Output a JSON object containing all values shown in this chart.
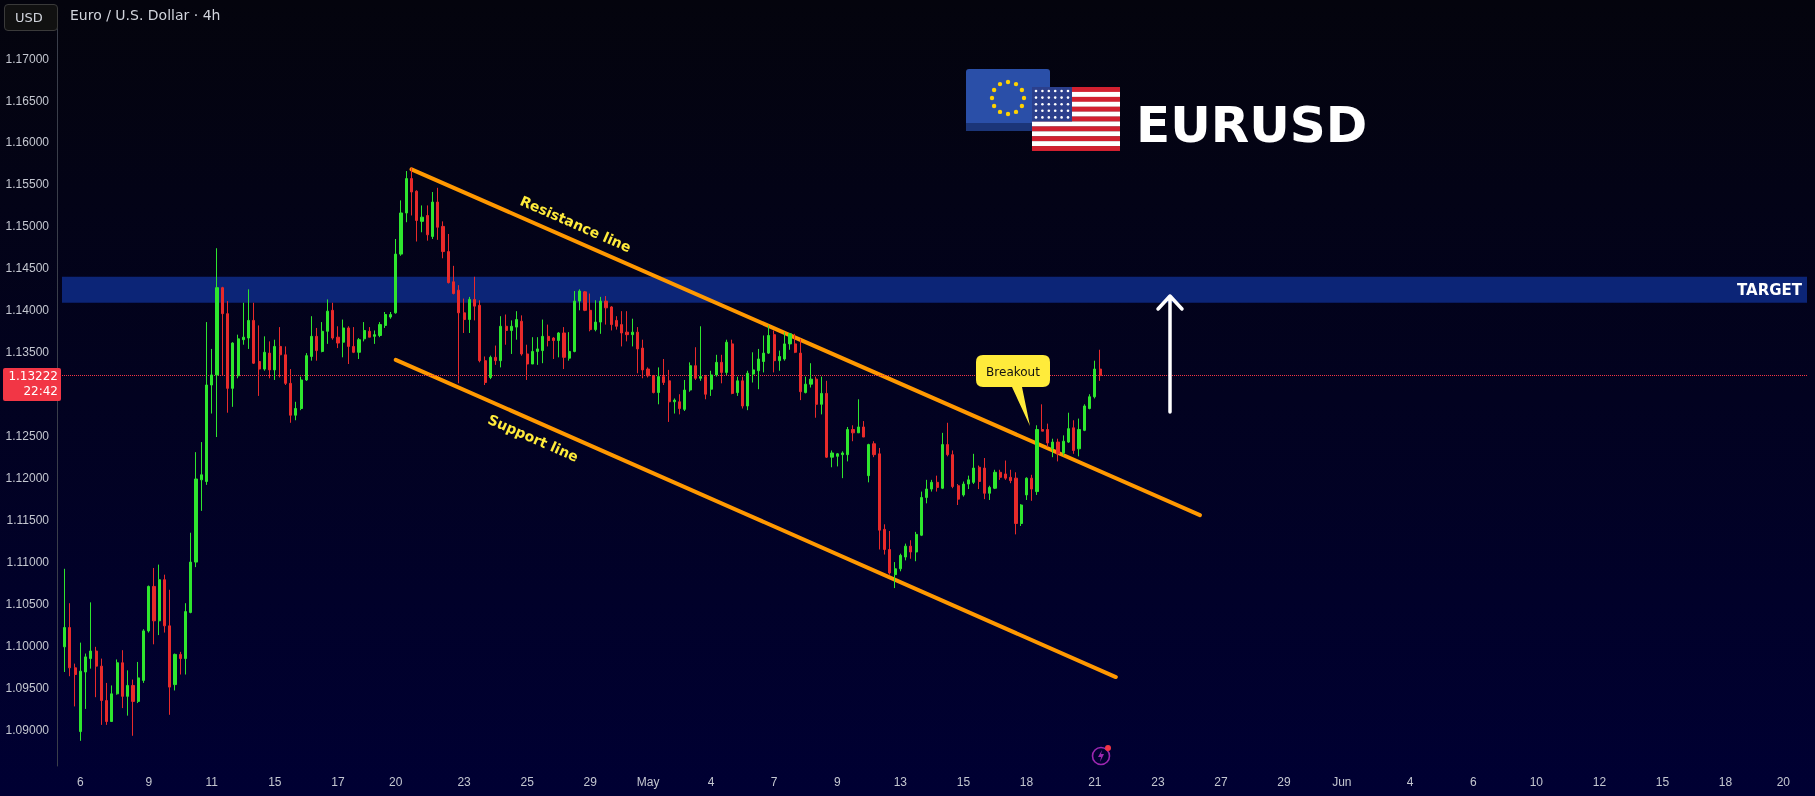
{
  "chart_data": {
    "type": "candlestick",
    "title": "Euro / U.S. Dollar · 4h",
    "subtitle": "EURUSD",
    "ylabel": "USD",
    "categories": [
      null,
      null,
      null,
      "6",
      null,
      null,
      null,
      null,
      null,
      null,
      null,
      null,
      null,
      null,
      null,
      null,
      "9",
      null,
      null,
      null,
      null,
      null,
      null,
      null,
      null,
      null,
      null,
      null,
      "11",
      null,
      null,
      null,
      null,
      null,
      null,
      null,
      null,
      null,
      null,
      null,
      "15",
      null,
      null,
      null,
      null,
      null,
      null,
      null,
      null,
      null,
      null,
      null,
      "17",
      null,
      null,
      null,
      null,
      null,
      null,
      null,
      null,
      null,
      null,
      "20",
      null,
      null,
      null,
      null,
      null,
      null,
      null,
      null,
      null,
      null,
      null,
      null,
      "23",
      null,
      null,
      null,
      null,
      null,
      null,
      null,
      null,
      null,
      null,
      null,
      "25",
      null,
      null,
      null,
      null,
      null,
      null,
      null,
      null,
      null,
      null,
      null,
      "29",
      null,
      null,
      null,
      null,
      null,
      null,
      null,
      null,
      null,
      null,
      "May",
      null,
      null,
      null,
      null,
      null,
      null,
      null,
      null,
      null,
      null,
      null,
      "4",
      null,
      null,
      null,
      null,
      null,
      null,
      null,
      null,
      null,
      null,
      null,
      "7",
      null,
      null,
      null,
      null,
      null,
      null,
      null,
      null,
      null,
      null,
      null,
      "9",
      null,
      null,
      null,
      null,
      null,
      null,
      null,
      null,
      null,
      null,
      null,
      "13",
      null,
      null,
      null,
      null,
      null,
      null,
      null,
      null,
      null,
      null,
      null,
      "15",
      null,
      null,
      null,
      null,
      null,
      null,
      null,
      null,
      null,
      null,
      null,
      "18",
      null,
      null,
      null,
      null,
      null,
      null,
      null,
      null,
      null,
      null,
      null,
      null,
      "21",
      null,
      null,
      null,
      null,
      null,
      null,
      null,
      null,
      null,
      null,
      null,
      "23",
      null,
      null,
      null,
      null,
      null,
      null,
      null,
      null,
      null,
      null,
      null,
      "27",
      null,
      null,
      null,
      null,
      null,
      null,
      null,
      null,
      null,
      null,
      null,
      "29",
      null,
      null,
      null,
      null,
      null,
      null,
      null,
      null,
      null,
      null,
      "Jun",
      null,
      null,
      null,
      null,
      null,
      null,
      null,
      null,
      null,
      null,
      null,
      null,
      "4",
      null,
      null,
      null,
      null,
      null,
      null,
      null,
      null,
      null,
      null,
      null,
      "6",
      null,
      null,
      null,
      null,
      null,
      null,
      null,
      null,
      null,
      null,
      null,
      "10",
      null,
      null,
      null,
      null,
      null,
      null,
      null,
      null,
      null,
      null,
      null,
      "12",
      null,
      null,
      null,
      null,
      null,
      null,
      null,
      null,
      null,
      null,
      null,
      "15",
      null,
      null,
      null,
      null,
      null,
      null,
      null,
      null,
      null,
      null,
      null,
      "18",
      null,
      null,
      null,
      null,
      null,
      null,
      null,
      null,
      null,
      null,
      "20",
      null,
      null,
      null,
      null
    ],
    "ohlc": [
      [
        1.0999,
        1.1092,
        1.0969,
        1.1022
      ],
      [
        1.1022,
        1.1051,
        1.0964,
        1.0974
      ],
      [
        1.0974,
        1.0979,
        1.0928,
        1.0966
      ],
      [
        1.0898,
        1.1004,
        1.0887,
        1.097
      ],
      [
        1.0969,
        1.0991,
        1.0925,
        1.0987
      ],
      [
        1.0985,
        1.1052,
        1.0973,
        1.0994
      ],
      [
        1.0994,
        1.0999,
        1.0939,
        1.0976
      ],
      [
        1.0976,
        1.0985,
        1.0906,
        1.0935
      ],
      [
        1.0935,
        1.0956,
        1.0906,
        1.091
      ],
      [
        1.091,
        1.0953,
        1.091,
        1.0943
      ],
      [
        1.0943,
        1.0984,
        1.0942,
        1.098
      ],
      [
        1.098,
        1.0995,
        1.0926,
        1.094
      ],
      [
        1.094,
        1.0971,
        1.0917,
        1.0953
      ],
      [
        1.0953,
        1.096,
        1.0893,
        1.0934
      ],
      [
        1.0934,
        1.0981,
        1.0932,
        1.0962
      ],
      [
        1.0959,
        1.102,
        1.0956,
        1.1018
      ],
      [
        1.1018,
        1.1072,
        1.1016,
        1.1071
      ],
      [
        1.1071,
        1.1093,
        1.1002,
        1.103
      ],
      [
        1.103,
        1.1097,
        1.1013,
        1.1079
      ],
      [
        1.1079,
        1.1085,
        1.1016,
        1.1024
      ],
      [
        1.1024,
        1.1067,
        1.0918,
        1.0951
      ],
      [
        1.0954,
        1.0991,
        1.0947,
        1.099
      ],
      [
        1.099,
        1.0993,
        1.0966,
        1.0985
      ],
      [
        1.0985,
        1.1051,
        1.0966,
        1.1041
      ],
      [
        1.104,
        1.1135,
        1.1039,
        1.11
      ],
      [
        1.11,
        1.1231,
        1.1094,
        1.1199
      ],
      [
        1.1198,
        1.1243,
        1.1161,
        1.1204
      ],
      [
        1.1196,
        1.1386,
        1.1192,
        1.1311
      ],
      [
        1.1311,
        1.1354,
        1.1277,
        1.1323
      ],
      [
        1.1323,
        1.1474,
        1.1249,
        1.1427
      ],
      [
        1.1427,
        1.1428,
        1.1322,
        1.1396
      ],
      [
        1.1396,
        1.1411,
        1.1278,
        1.1307
      ],
      [
        1.1307,
        1.1362,
        1.1285,
        1.1361
      ],
      [
        1.1322,
        1.1371,
        1.1319,
        1.1366
      ],
      [
        1.1365,
        1.1409,
        1.1359,
        1.1368
      ],
      [
        1.1367,
        1.1425,
        1.1354,
        1.1388
      ],
      [
        1.1388,
        1.1409,
        1.1336,
        1.1337
      ],
      [
        1.1339,
        1.1382,
        1.1298,
        1.133
      ],
      [
        1.133,
        1.1369,
        1.1328,
        1.135
      ],
      [
        1.1349,
        1.1363,
        1.1319,
        1.1329
      ],
      [
        1.1329,
        1.1365,
        1.1317,
        1.1357
      ],
      [
        1.1357,
        1.138,
        1.132,
        1.1347
      ],
      [
        1.1347,
        1.1357,
        1.1311,
        1.1313
      ],
      [
        1.1313,
        1.133,
        1.1266,
        1.1275
      ],
      [
        1.1275,
        1.1291,
        1.1269,
        1.1283
      ],
      [
        1.1283,
        1.1321,
        1.1281,
        1.1317
      ],
      [
        1.1317,
        1.1349,
        1.1316,
        1.1346
      ],
      [
        1.1345,
        1.1393,
        1.134,
        1.1369
      ],
      [
        1.1369,
        1.1379,
        1.134,
        1.1352
      ],
      [
        1.1351,
        1.1386,
        1.135,
        1.1375
      ],
      [
        1.1375,
        1.1413,
        1.136,
        1.1399
      ],
      [
        1.14,
        1.1409,
        1.1365,
        1.1367
      ],
      [
        1.1368,
        1.1381,
        1.1355,
        1.1361
      ],
      [
        1.1362,
        1.1389,
        1.1344,
        1.1379
      ],
      [
        1.1379,
        1.1381,
        1.1336,
        1.1357
      ],
      [
        1.1357,
        1.138,
        1.1349,
        1.135
      ],
      [
        1.135,
        1.1367,
        1.1342,
        1.1365
      ],
      [
        1.1366,
        1.1386,
        1.1363,
        1.1376
      ],
      [
        1.1375,
        1.138,
        1.1368,
        1.1368
      ],
      [
        1.1369,
        1.1376,
        1.136,
        1.1371
      ],
      [
        1.137,
        1.1386,
        1.1368,
        1.1383
      ],
      [
        1.1382,
        1.1398,
        1.1379,
        1.1395
      ],
      [
        1.1392,
        1.1398,
        1.139,
        1.1395
      ],
      [
        1.1397,
        1.1485,
        1.1396,
        1.1467
      ],
      [
        1.1467,
        1.1531,
        1.1465,
        1.1516
      ],
      [
        1.1516,
        1.1566,
        1.1505,
        1.1557
      ],
      [
        1.1557,
        1.157,
        1.1513,
        1.1541
      ],
      [
        1.1542,
        1.1543,
        1.1482,
        1.1507
      ],
      [
        1.1506,
        1.1525,
        1.1493,
        1.1511
      ],
      [
        1.1513,
        1.1525,
        1.1483,
        1.149
      ],
      [
        1.1488,
        1.1541,
        1.1485,
        1.1529
      ],
      [
        1.1529,
        1.1546,
        1.1484,
        1.1499
      ],
      [
        1.15,
        1.1506,
        1.1462,
        1.147
      ],
      [
        1.147,
        1.1491,
        1.1432,
        1.1433
      ],
      [
        1.1434,
        1.1453,
        1.1419,
        1.142
      ],
      [
        1.1424,
        1.143,
        1.1313,
        1.1397
      ],
      [
        1.1397,
        1.1414,
        1.1373,
        1.1389
      ],
      [
        1.1389,
        1.1416,
        1.1373,
        1.1413
      ],
      [
        1.1413,
        1.144,
        1.1388,
        1.1405
      ],
      [
        1.1406,
        1.1412,
        1.1338,
        1.134
      ],
      [
        1.134,
        1.1345,
        1.1311,
        1.1314
      ],
      [
        1.132,
        1.1346,
        1.1318,
        1.1344
      ],
      [
        1.1344,
        1.1358,
        1.1335,
        1.134
      ],
      [
        1.134,
        1.1393,
        1.1332,
        1.1381
      ],
      [
        1.1381,
        1.1395,
        1.1359,
        1.1376
      ],
      [
        1.1376,
        1.1388,
        1.1348,
        1.1381
      ],
      [
        1.138,
        1.1399,
        1.1365,
        1.1389
      ],
      [
        1.1387,
        1.1394,
        1.1346,
        1.1348
      ],
      [
        1.1348,
        1.1359,
        1.1317,
        1.1336
      ],
      [
        1.1336,
        1.1368,
        1.1336,
        1.1351
      ],
      [
        1.1351,
        1.1368,
        1.1335,
        1.1354
      ],
      [
        1.1352,
        1.1389,
        1.1337,
        1.1369
      ],
      [
        1.1369,
        1.1383,
        1.1357,
        1.1364
      ],
      [
        1.1367,
        1.1368,
        1.1342,
        1.1364
      ],
      [
        1.1364,
        1.1374,
        1.1344,
        1.1373
      ],
      [
        1.1373,
        1.138,
        1.133,
        1.1344
      ],
      [
        1.1343,
        1.1374,
        1.134,
        1.1351
      ],
      [
        1.1351,
        1.1423,
        1.135,
        1.1411
      ],
      [
        1.1411,
        1.1425,
        1.14,
        1.1423
      ],
      [
        1.1422,
        1.1423,
        1.1399,
        1.14
      ],
      [
        1.14,
        1.142,
        1.1375,
        1.1377
      ],
      [
        1.1377,
        1.1412,
        1.1375,
        1.1386
      ],
      [
        1.1386,
        1.1416,
        1.1372,
        1.1411
      ],
      [
        1.1411,
        1.1417,
        1.1383,
        1.1403
      ],
      [
        1.1404,
        1.1405,
        1.1376,
        1.1383
      ],
      [
        1.1388,
        1.1393,
        1.1377,
        1.1381
      ],
      [
        1.1383,
        1.1399,
        1.1357,
        1.1373
      ],
      [
        1.1374,
        1.1399,
        1.1363,
        1.1371
      ],
      [
        1.1371,
        1.139,
        1.1357,
        1.1374
      ],
      [
        1.1374,
        1.138,
        1.1325,
        1.1354
      ],
      [
        1.1355,
        1.1365,
        1.1319,
        1.1329
      ],
      [
        1.133,
        1.1332,
        1.132,
        1.1322
      ],
      [
        1.1322,
        1.1323,
        1.1301,
        1.1302
      ],
      [
        1.1302,
        1.1332,
        1.1288,
        1.1321
      ],
      [
        1.1321,
        1.1342,
        1.1311,
        1.1314
      ],
      [
        1.1316,
        1.1329,
        1.1267,
        1.1291
      ],
      [
        1.1291,
        1.1295,
        1.1277,
        1.1293
      ],
      [
        1.1291,
        1.13,
        1.1276,
        1.1283
      ],
      [
        1.1282,
        1.1317,
        1.128,
        1.1305
      ],
      [
        1.1305,
        1.1338,
        1.1303,
        1.1334
      ],
      [
        1.1334,
        1.1356,
        1.1317,
        1.1319
      ],
      [
        1.1319,
        1.1381,
        1.1316,
        1.1321
      ],
      [
        1.1321,
        1.1323,
        1.1294,
        1.13
      ],
      [
        1.1306,
        1.1328,
        1.1298,
        1.1323
      ],
      [
        1.1323,
        1.1347,
        1.1321,
        1.1338
      ],
      [
        1.1338,
        1.1347,
        1.1313,
        1.1326
      ],
      [
        1.1326,
        1.1365,
        1.1323,
        1.1362
      ],
      [
        1.136,
        1.1365,
        1.13,
        1.1301
      ],
      [
        1.1302,
        1.1321,
        1.1298,
        1.1316
      ],
      [
        1.1316,
        1.1321,
        1.1283,
        1.1286
      ],
      [
        1.1286,
        1.1328,
        1.1281,
        1.1325
      ],
      [
        1.1324,
        1.135,
        1.1314,
        1.1329
      ],
      [
        1.1328,
        1.1354,
        1.1306,
        1.1342
      ],
      [
        1.1339,
        1.137,
        1.1326,
        1.1349
      ],
      [
        1.1349,
        1.1382,
        1.1348,
        1.137
      ],
      [
        1.1371,
        1.1376,
        1.1326,
        1.134
      ],
      [
        1.134,
        1.1352,
        1.1328,
        1.1345
      ],
      [
        1.1342,
        1.1374,
        1.134,
        1.136
      ],
      [
        1.136,
        1.1373,
        1.1353,
        1.1372
      ],
      [
        1.136,
        1.1372,
        1.1349,
        1.135
      ],
      [
        1.1349,
        1.1366,
        1.1293,
        1.1303
      ],
      [
        1.1302,
        1.1321,
        1.1301,
        1.1312
      ],
      [
        1.1312,
        1.1337,
        1.1308,
        1.1318
      ],
      [
        1.1318,
        1.1321,
        1.1272,
        1.1288
      ],
      [
        1.1288,
        1.1321,
        1.1276,
        1.1301
      ],
      [
        1.1301,
        1.1316,
        1.1224,
        1.1225
      ],
      [
        1.1225,
        1.1233,
        1.1213,
        1.123
      ],
      [
        1.1226,
        1.123,
        1.1214,
        1.1229
      ],
      [
        1.1228,
        1.1232,
        1.12,
        1.123
      ],
      [
        1.1228,
        1.1261,
        1.122,
        1.1258
      ],
      [
        1.1258,
        1.1263,
        1.1244,
        1.1254
      ],
      [
        1.1254,
        1.1294,
        1.1254,
        1.1261
      ],
      [
        1.1261,
        1.1268,
        1.1249,
        1.1249
      ],
      [
        1.1203,
        1.1241,
        1.1195,
        1.124
      ],
      [
        1.1241,
        1.1244,
        1.1225,
        1.1228
      ],
      [
        1.1229,
        1.1236,
        1.1115,
        1.1138
      ],
      [
        1.1139,
        1.1145,
        1.1109,
        1.1115
      ],
      [
        1.1115,
        1.1137,
        1.1085,
        1.1087
      ],
      [
        1.1085,
        1.11,
        1.1069,
        1.1092
      ],
      [
        1.1092,
        1.111,
        1.1089,
        1.1108
      ],
      [
        1.1106,
        1.1122,
        1.1102,
        1.1119
      ],
      [
        1.1119,
        1.1126,
        1.1104,
        1.1112
      ],
      [
        1.1112,
        1.1136,
        1.1101,
        1.1133
      ],
      [
        1.1132,
        1.1184,
        1.1131,
        1.1177
      ],
      [
        1.1177,
        1.1198,
        1.117,
        1.1187
      ],
      [
        1.1187,
        1.1198,
        1.1184,
        1.1195
      ],
      [
        1.1195,
        1.1203,
        1.1184,
        1.1189
      ],
      [
        1.1188,
        1.1254,
        1.1187,
        1.124
      ],
      [
        1.124,
        1.1266,
        1.1226,
        1.1228
      ],
      [
        1.1228,
        1.1233,
        1.1188,
        1.119
      ],
      [
        1.1191,
        1.1193,
        1.1168,
        1.1175
      ],
      [
        1.118,
        1.1196,
        1.1178,
        1.1193
      ],
      [
        1.1193,
        1.1203,
        1.1187,
        1.1198
      ],
      [
        1.1195,
        1.1229,
        1.1193,
        1.1212
      ],
      [
        1.1213,
        1.1215,
        1.1187,
        1.1196
      ],
      [
        1.1212,
        1.1224,
        1.1175,
        1.1182
      ],
      [
        1.1182,
        1.1191,
        1.1174,
        1.1189
      ],
      [
        1.1188,
        1.121,
        1.1187,
        1.1207
      ],
      [
        1.1207,
        1.121,
        1.1198,
        1.1201
      ],
      [
        1.1205,
        1.1221,
        1.1198,
        1.12
      ],
      [
        1.1201,
        1.121,
        1.1194,
        1.1197
      ],
      [
        1.12,
        1.1207,
        1.1133,
        1.1146
      ],
      [
        1.1146,
        1.1169,
        1.1143,
        1.1168
      ],
      [
        1.118,
        1.1201,
        1.1174,
        1.12
      ],
      [
        1.12,
        1.1204,
        1.1173,
        1.1187
      ],
      [
        1.1184,
        1.1263,
        1.118,
        1.1258
      ],
      [
        1.1258,
        1.1288,
        1.1256,
        1.1256
      ],
      [
        1.1258,
        1.1265,
        1.1237,
        1.1242
      ],
      [
        1.1235,
        1.1247,
        1.1225,
        1.1243
      ],
      [
        1.1243,
        1.1247,
        1.122,
        1.1229
      ],
      [
        1.123,
        1.1251,
        1.1227,
        1.1244
      ],
      [
        1.1243,
        1.1278,
        1.1242,
        1.1259
      ],
      [
        1.126,
        1.1269,
        1.1229,
        1.1233
      ],
      [
        1.1235,
        1.1271,
        1.1226,
        1.1258
      ],
      [
        1.1257,
        1.1288,
        1.1256,
        1.1286
      ],
      [
        1.1283,
        1.13,
        1.1282,
        1.1297
      ],
      [
        1.1297,
        1.134,
        1.1295,
        1.133
      ],
      [
        1.133,
        1.1353,
        1.1316,
        1.13222
      ],
      null,
      null,
      null,
      null,
      null,
      null,
      null,
      null,
      null,
      null,
      null,
      null,
      null,
      null,
      null,
      null,
      null,
      null,
      null,
      null,
      null,
      null,
      null,
      null,
      null,
      null,
      null,
      null,
      null,
      null,
      null,
      null,
      null,
      null,
      null,
      null,
      null,
      null,
      null,
      null,
      null,
      null,
      null,
      null,
      null,
      null,
      null,
      null,
      null,
      null,
      null,
      null,
      null,
      null,
      null,
      null,
      null,
      null,
      null,
      null,
      null,
      null,
      null,
      null,
      null,
      null,
      null,
      null,
      null,
      null,
      null,
      null,
      null,
      null,
      null,
      null,
      null,
      null,
      null,
      null,
      null,
      null,
      null,
      null,
      null,
      null,
      null,
      null,
      null,
      null,
      null,
      null,
      null,
      null,
      null,
      null,
      null,
      null,
      null,
      null,
      null,
      null,
      null,
      null,
      null,
      null,
      null,
      null,
      null,
      null,
      null,
      null,
      null,
      null,
      null,
      null,
      null,
      null,
      null,
      null,
      null,
      null,
      null,
      null,
      null,
      null,
      null,
      null,
      null,
      null,
      null,
      null,
      null,
      null
    ],
    "series": [
      {
        "type": "line",
        "name": "Resistance line",
        "color": "#ff9800",
        "values": [
          null,
          null,
          null,
          null,
          null,
          null,
          null,
          null,
          null,
          null,
          null,
          null,
          null,
          null,
          null,
          null,
          null,
          null,
          null,
          null,
          null,
          null,
          null,
          null,
          null,
          null,
          null,
          null,
          null,
          null,
          null,
          null,
          null,
          null,
          null,
          null,
          null,
          null,
          null,
          null,
          null,
          null,
          null,
          null,
          null,
          null,
          null,
          null,
          null,
          null,
          null,
          null,
          null,
          null,
          null,
          null,
          null,
          null,
          null,
          null,
          null,
          null,
          null,
          null,
          null,
          null,
          1.1568,
          null,
          null,
          null,
          null,
          null,
          null,
          null,
          null,
          null,
          null,
          null,
          null,
          null,
          null,
          null,
          null,
          null,
          null,
          null,
          null,
          null,
          null,
          null,
          null,
          null,
          null,
          null,
          null,
          null,
          null,
          null,
          null,
          null,
          null,
          null,
          null,
          null,
          null,
          null,
          null,
          null,
          null,
          null,
          null,
          null,
          null,
          null,
          null,
          null,
          null,
          null,
          null,
          null,
          null,
          null,
          null,
          null,
          null,
          null,
          null,
          null,
          null,
          null,
          null,
          null,
          null,
          null,
          null,
          null,
          null,
          null,
          null,
          null,
          null,
          null,
          null,
          null,
          null,
          null,
          null,
          null,
          null,
          null,
          null,
          null,
          null,
          null,
          null,
          null,
          null,
          null,
          null,
          null,
          null,
          null,
          null,
          null,
          null,
          null,
          null,
          null,
          null,
          null,
          null,
          null,
          null,
          null,
          null,
          null,
          null,
          null,
          null,
          null,
          null,
          null,
          null,
          null,
          null,
          null,
          null,
          null,
          null,
          null,
          null,
          null,
          null,
          null,
          null,
          null,
          null,
          null,
          null,
          null,
          null,
          null,
          null,
          null,
          null,
          null,
          null,
          null,
          null,
          null,
          null,
          null,
          null,
          null,
          null,
          null,
          1.1156,
          null,
          null,
          null,
          null,
          null,
          null,
          null,
          null,
          null,
          null,
          null,
          null,
          null,
          null,
          null,
          null,
          null,
          null,
          null,
          null,
          null,
          null,
          null,
          null,
          null,
          null,
          null,
          null,
          null,
          null,
          null,
          null,
          null,
          null,
          null,
          null,
          null,
          null,
          null,
          null,
          null,
          null,
          null,
          null,
          null,
          null,
          null,
          null,
          null,
          null,
          null,
          null,
          null,
          null,
          null,
          null,
          null,
          null,
          null,
          null,
          null,
          null,
          null,
          null,
          null,
          null,
          null,
          null,
          null,
          null,
          null,
          null,
          null,
          null,
          null,
          null,
          null,
          null,
          null,
          null,
          null,
          null,
          null,
          null,
          null,
          null,
          null,
          null,
          null,
          null,
          null,
          null,
          null,
          null,
          null,
          null,
          null,
          null,
          null,
          null,
          null,
          null,
          null,
          null,
          null,
          null,
          null,
          null,
          null,
          null,
          null,
          null,
          null,
          null,
          null
        ]
      },
      {
        "type": "line",
        "name": "Support line",
        "color": "#ff9800",
        "values": [
          null,
          null,
          null,
          null,
          null,
          null,
          null,
          null,
          null,
          null,
          null,
          null,
          null,
          null,
          null,
          null,
          null,
          null,
          null,
          null,
          null,
          null,
          null,
          null,
          null,
          null,
          null,
          null,
          null,
          null,
          null,
          null,
          null,
          null,
          null,
          null,
          null,
          null,
          null,
          null,
          null,
          null,
          null,
          null,
          null,
          null,
          null,
          null,
          null,
          null,
          null,
          null,
          null,
          null,
          null,
          null,
          null,
          null,
          null,
          null,
          null,
          null,
          null,
          1.1341,
          null,
          null,
          null,
          null,
          null,
          null,
          null,
          null,
          null,
          null,
          null,
          null,
          null,
          null,
          null,
          null,
          null,
          null,
          null,
          null,
          null,
          null,
          null,
          null,
          null,
          null,
          null,
          null,
          null,
          null,
          null,
          null,
          null,
          null,
          null,
          null,
          null,
          null,
          null,
          null,
          null,
          null,
          null,
          null,
          null,
          null,
          null,
          null,
          null,
          null,
          null,
          null,
          null,
          null,
          null,
          null,
          null,
          null,
          null,
          null,
          null,
          null,
          null,
          null,
          null,
          null,
          null,
          null,
          null,
          null,
          null,
          null,
          null,
          null,
          null,
          null,
          null,
          null,
          null,
          null,
          null,
          null,
          null,
          null,
          null,
          null,
          null,
          null,
          null,
          null,
          null,
          null,
          null,
          null,
          null,
          null,
          null,
          null,
          null,
          null,
          null,
          null,
          null,
          null,
          null,
          null,
          null,
          null,
          null,
          null,
          null,
          null,
          null,
          null,
          null,
          null,
          null,
          null,
          null,
          null,
          null,
          null,
          null,
          null,
          null,
          null,
          null,
          null,
          null,
          null,
          null,
          null,
          null,
          null,
          null,
          null,
          1.0963,
          null,
          null,
          null,
          null,
          null,
          null,
          null,
          null,
          null,
          null,
          null,
          null,
          null,
          null,
          null,
          null,
          null,
          null,
          null,
          null,
          null,
          null,
          null,
          null,
          null,
          null,
          null,
          null,
          null,
          null,
          null,
          null,
          null,
          null,
          null,
          null,
          null,
          null,
          null,
          null,
          null,
          null,
          null,
          null,
          null,
          null,
          null,
          null,
          null,
          null,
          null,
          null,
          null,
          null,
          null,
          null,
          null,
          null,
          null,
          null,
          null,
          null,
          null,
          null,
          null,
          null,
          null,
          null,
          null,
          null,
          null,
          null,
          null,
          null,
          null,
          null,
          null,
          null,
          null,
          null,
          null,
          null,
          null,
          null,
          null,
          null,
          null,
          null,
          null,
          null,
          null,
          null,
          null,
          null,
          null,
          null,
          null,
          null,
          null,
          null,
          null,
          null,
          null,
          null,
          null,
          null,
          null,
          null,
          null,
          null,
          null,
          null,
          null,
          null,
          null,
          null,
          null,
          null,
          null,
          null,
          null,
          null,
          null,
          null,
          null,
          null,
          null,
          null,
          null,
          null,
          null
        ]
      }
    ],
    "ylim": [
      1.0857,
      1.174
    ],
    "yticks": [
      {
        "value": 1.09,
        "label": "1.09000"
      },
      {
        "value": 1.095,
        "label": "1.09500"
      },
      {
        "value": 1.1,
        "label": "1.10000"
      },
      {
        "value": 1.105,
        "label": "1.10500"
      },
      {
        "value": 1.11,
        "label": "1.11000"
      },
      {
        "value": 1.115,
        "label": "1.11500"
      },
      {
        "value": 1.12,
        "label": "1.12000"
      },
      {
        "value": 1.125,
        "label": "1.12500"
      },
      {
        "value": 1.135,
        "label": "1.13500"
      },
      {
        "value": 1.14,
        "label": "1.14000"
      },
      {
        "value": 1.145,
        "label": "1.14500"
      },
      {
        "value": 1.15,
        "label": "1.15000"
      },
      {
        "value": 1.155,
        "label": "1.15500"
      },
      {
        "value": 1.16,
        "label": "1.16000"
      },
      {
        "value": 1.165,
        "label": "1.16500"
      },
      {
        "value": 1.17,
        "label": "1.17000"
      }
    ],
    "bands": [
      {
        "axis": "y",
        "from": 1.1409,
        "to": 1.144,
        "label": "TARGET",
        "color": "#0c2577"
      }
    ],
    "ref_lines": [
      {
        "axis": "y",
        "value": 1.13222,
        "label": "1.13222",
        "color": "#f23645",
        "line_style": "dotted"
      }
    ],
    "annotations": [
      "22:42",
      "Breakout"
    ]
  }
}
